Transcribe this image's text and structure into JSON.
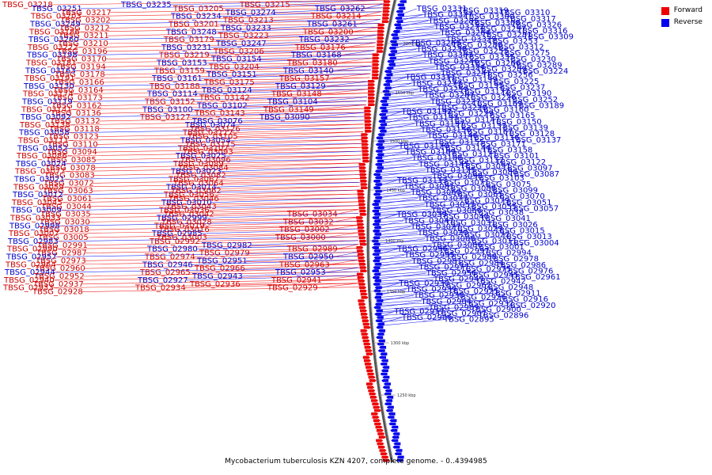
{
  "caption": "Mycobacterium tuberculosis KZN 4207, complete genome. - 0..4394985",
  "legend": [
    {
      "label": "Forward",
      "color": "#ee0000"
    },
    {
      "label": "Reverse",
      "color": "#0000ee"
    }
  ],
  "ticks": [
    "2000 kbp",
    "1550 kbp",
    "1500 kbp",
    "1450 kbp",
    "1400 kbp",
    "1350 kbp",
    "1300 kbp",
    "1250 kbp"
  ],
  "forward_labels": [
    "TBSG_03218",
    "TBSG_03215",
    "TBSG_03205",
    "TBSG_03217",
    "TBSG_03203",
    "TBSG_03214",
    "TBSG_03202",
    "TBSG_03213",
    "TBSG_03201",
    "TBSG_03212",
    "TBSG_03186",
    "TBSG_03200",
    "TBSG_03211",
    "TBSG_03223",
    "TBSG_03179",
    "TBSG_03210",
    "TBSG_03222",
    "TBSG_03176",
    "TBSG_03196",
    "TBSG_03206",
    "TBSG_03219",
    "TBSG_03170",
    "TBSG_03181",
    "TBSG_03180",
    "TBSG_03194",
    "TBSG_03204",
    "TBSG_03159",
    "TBSG_03178",
    "TBSG_03191",
    "TBSG_03157",
    "TBSG_03166",
    "TBSG_03175",
    "TBSG_03188",
    "TBSG_03164",
    "TBSG_03174",
    "TBSG_03148",
    "TBSG_03173",
    "TBSG_03142",
    "TBSG_03152",
    "TBSG_03162",
    "TBSG_03141",
    "TBSG_03149",
    "TBSG_03136",
    "TBSG_03143",
    "TBSG_03127",
    "TBSG_03132",
    "TBSG_03138",
    "TBSG_03118",
    "TBSG_03126",
    "TBSG_03117",
    "TBSG_03123",
    "TBSG_03105",
    "TBSG_03111",
    "TBSG_03110",
    "TBSG_03115",
    "TBSG_03107",
    "TBSG_03094",
    "TBSG_03093",
    "TBSG_03086",
    "TBSG_03085",
    "TBSG_03096",
    "TBSG_03089",
    "TBSG_03078",
    "TBSG_03084",
    "TBSG_03077",
    "TBSG_03083",
    "TBSG_03082",
    "TBSG_03067",
    "TBSG_03072",
    "TBSG_03064",
    "TBSG_03059",
    "TBSG_03063",
    "TBSG_03062",
    "TBSG_03056",
    "TBSG_03061",
    "TBSG_03046",
    "TBSG_03045",
    "TBSG_03044",
    "TBSG_03043",
    "TBSG_03036",
    "TBSG_03035",
    "TBSG_03042",
    "TBSG_03034",
    "TBSG_03033",
    "TBSG_03030",
    "TBSG_03028",
    "TBSG_03032",
    "TBSG_03019",
    "TBSG_03018",
    "TBSG_03016",
    "TBSG_03002",
    "TBSG_03007",
    "TBSG_03005",
    "TBSG_03003",
    "TBSG_03000",
    "TBSG_02992",
    "TBSG_02991",
    "TBSG_02990",
    "TBSG_02989",
    "TBSG_02987",
    "TBSG_02979",
    "TBSG_02974",
    "TBSG_02973",
    "TBSG_02964",
    "TBSG_02963",
    "TBSG_02960",
    "TBSG_02966",
    "TBSG_02965",
    "TBSG_02952",
    "TBSG_02940",
    "TBSG_02941",
    "TBSG_02937",
    "TBSG_02936",
    "TBSG_02933",
    "TBSG_02934",
    "TBSG_02929",
    "TBSG_02928"
  ],
  "reverse_labels": [
    "TBSG_03235",
    "TBSG_03251",
    "TBSG_03262",
    "TBSG_03274",
    "TBSG_03234",
    "TBSG_03249",
    "TBSG_03261",
    "TBSG_03233",
    "TBSG_03248",
    "TBSG_03260",
    "TBSG_03232",
    "TBSG_03247",
    "TBSG_03231",
    "TBSG_03198",
    "TBSG_03168",
    "TBSG_03154",
    "TBSG_03153",
    "TBSG_03163",
    "TBSG_03140",
    "TBSG_03151",
    "TBSG_03161",
    "TBSG_03130",
    "TBSG_03129",
    "TBSG_03124",
    "TBSG_03114",
    "TBSG_03119",
    "TBSG_03104",
    "TBSG_03102",
    "TBSG_03100",
    "TBSG_03092",
    "TBSG_03090",
    "TBSG_03076",
    "TBSG_03074",
    "TBSG_03058",
    "TBSG_03054",
    "TBSG_03052",
    "TBSG_03025",
    "TBSG_03024",
    "TBSG_03023",
    "TBSG_03021",
    "TBSG_03014",
    "TBSG_03012",
    "TBSG_03010",
    "TBSG_03009",
    "TBSG_02999",
    "TBSG_02998",
    "TBSG_02985",
    "TBSG_02983",
    "TBSG_02982",
    "TBSG_02980",
    "TBSG_02957",
    "TBSG_02950",
    "TBSG_02951",
    "TBSG_02946",
    "TBSG_02944",
    "TBSG_02953",
    "TBSG_02943",
    "TBSG_02927",
    "TBSG_03331",
    "TBSG_03319",
    "TBSG_03310",
    "TBSG_03327",
    "TBSG_03300",
    "TBSG_03317",
    "TBSG_03285",
    "TBSG_03308",
    "TBSG_03326",
    "TBSG_03272",
    "TBSG_03297",
    "TBSG_03316",
    "TBSG_03264",
    "TBSG_03281",
    "TBSG_03309",
    "TBSG_03329",
    "TBSG_03253",
    "TBSG_03265",
    "TBSG_03288",
    "TBSG_03312",
    "TBSG_03238",
    "TBSG_03255",
    "TBSG_03275",
    "TBSG_03303",
    "TBSG_03335",
    "TBSG_03230",
    "TBSG_03246",
    "TBSG_03266",
    "TBSG_03289",
    "TBSG_03324",
    "TBSG_03209",
    "TBSG_03224",
    "TBSG_03241",
    "TBSG_03256",
    "TBSG_03311",
    "TBSG_03199",
    "TBSG_03225",
    "TBSG_03273",
    "TBSG_03195",
    "TBSG_03237",
    "TBSG_03259",
    "TBSG_03172",
    "TBSG_03190",
    "TBSG_03207",
    "TBSG_03226",
    "TBSG_03252",
    "TBSG_03227",
    "TBSG_03169",
    "TBSG_03189",
    "TBSG_03228",
    "TBSG_03160",
    "TBSG_03192",
    "TBSG_03229",
    "TBSG_03165",
    "TBSG_03193",
    "TBSG_03147",
    "TBSG_03150",
    "TBSG_03197",
    "TBSG_03133",
    "TBSG_03139",
    "TBSG_03156",
    "TBSG_03167",
    "TBSG_03128",
    "TBSG_03146",
    "TBSG_03116",
    "TBSG_03137",
    "TBSG_03155",
    "TBSG_03171",
    "TBSG_03120",
    "TBSG_03144",
    "TBSG_03158",
    "TBSG_03109",
    "TBSG_03121",
    "TBSG_03101",
    "TBSG_03108",
    "TBSG_03112",
    "TBSG_03122",
    "TBSG_03145",
    "TBSG_03091",
    "TBSG_03097",
    "TBSG_03125",
    "TBSG_03080",
    "TBSG_03087",
    "TBSG_03098",
    "TBSG_03103",
    "TBSG_03113",
    "TBSG_03071",
    "TBSG_03075",
    "TBSG_03081",
    "TBSG_03088",
    "TBSG_03099",
    "TBSG_03060",
    "TBSG_03065",
    "TBSG_03070",
    "TBSG_03073",
    "TBSG_03079",
    "TBSG_03051",
    "TBSG_03053",
    "TBSG_03055",
    "TBSG_03057",
    "TBSG_03066",
    "TBSG_03038",
    "TBSG_03039",
    "TBSG_03040",
    "TBSG_03041",
    "TBSG_03047",
    "TBSG_03031",
    "TBSG_03026",
    "TBSG_03027",
    "TBSG_03029",
    "TBSG_03015",
    "TBSG_03020",
    "TBSG_03022",
    "TBSG_03013",
    "TBSG_03008",
    "TBSG_03011",
    "TBSG_03004",
    "TBSG_03006",
    "TBSG_03001",
    "TBSG_02996",
    "TBSG_02997",
    "TBSG_02994",
    "TBSG_02995",
    "TBSG_02988",
    "TBSG_02978",
    "TBSG_02981",
    "TBSG_02984",
    "TBSG_02986",
    "TBSG_02977",
    "TBSG_02975",
    "TBSG_02976",
    "TBSG_02956",
    "TBSG_02945",
    "TBSG_02961",
    "TBSG_02949",
    "TBSG_02942",
    "TBSG_02930",
    "TBSG_02962",
    "TBSG_02948",
    "TBSG_02939",
    "TBSG_02925",
    "TBSG_02911",
    "TBSG_02938",
    "TBSG_02926",
    "TBSG_02916",
    "TBSG_02904",
    "TBSG_02932",
    "TBSG_02920",
    "TBSG_02909",
    "TBSG_02900",
    "TBSG_02917",
    "TBSG_02907",
    "TBSG_02896",
    "TBSG_02906",
    "TBSG_02895"
  ]
}
